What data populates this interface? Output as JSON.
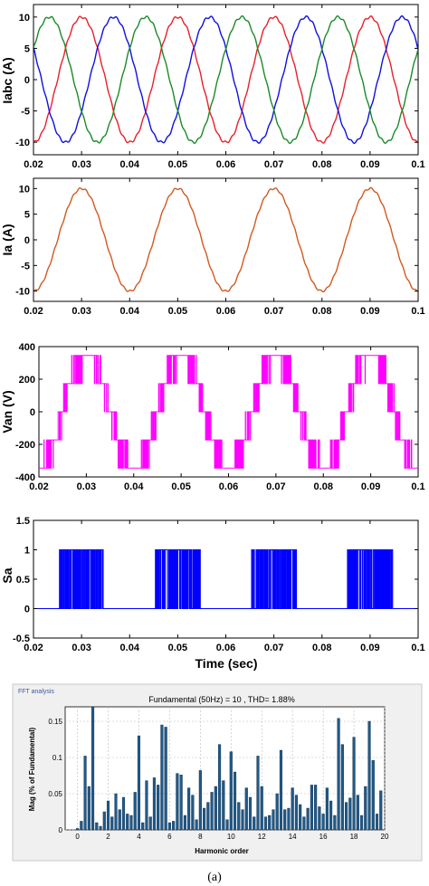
{
  "chart_data": [
    {
      "type": "line",
      "ylabel": "Iabc (A)",
      "xlim": [
        0.02,
        0.1
      ],
      "ylim": [
        -12,
        12
      ],
      "xticks": [
        "0.02",
        "0.03",
        "0.04",
        "0.05",
        "0.06",
        "0.07",
        "0.08",
        "0.09",
        "0.1"
      ],
      "yticks": [
        "10",
        "5",
        "0",
        "-5",
        "-10"
      ],
      "frequency_hz": 50,
      "amplitude": 10,
      "series": [
        {
          "color": "#e8202a",
          "phase_deg": 0
        },
        {
          "color": "#1010e0",
          "phase_deg": -120
        },
        {
          "color": "#1a8a2a",
          "phase_deg": 120
        }
      ]
    },
    {
      "type": "line",
      "ylabel": "Ia (A)",
      "xlim": [
        0.02,
        0.1
      ],
      "ylim": [
        -12,
        12
      ],
      "xticks": [
        "0.02",
        "0.03",
        "0.04",
        "0.05",
        "0.06",
        "0.07",
        "0.08",
        "0.09",
        "0.1"
      ],
      "yticks": [
        "10",
        "5",
        "0",
        "-5",
        "-10"
      ],
      "frequency_hz": 50,
      "amplitude": 10,
      "series": [
        {
          "color": "#d2591e",
          "phase_deg": 0
        }
      ]
    },
    {
      "type": "line",
      "ylabel": "Van (V)",
      "xlim": [
        0.02,
        0.1
      ],
      "ylim": [
        -400,
        400
      ],
      "xticks": [
        "0.02",
        "0.03",
        "0.04",
        "0.05",
        "0.06",
        "0.07",
        "0.08",
        "0.09",
        "0.1"
      ],
      "yticks": [
        "400",
        "200",
        "0",
        "-200",
        "-400"
      ],
      "levels": [
        -346,
        -173,
        0,
        173,
        346
      ],
      "frequency_hz": 50,
      "series": [
        {
          "color": "#ff00ff"
        }
      ]
    },
    {
      "type": "line",
      "ylabel": "Sa",
      "xlabel": "Time (sec)",
      "xlim": [
        0.02,
        0.1
      ],
      "ylim": [
        -0.5,
        1.5
      ],
      "xticks": [
        "0.02",
        "0.03",
        "0.04",
        "0.05",
        "0.06",
        "0.07",
        "0.08",
        "0.09",
        "0.1"
      ],
      "yticks": [
        "1.5",
        "1",
        "0.5",
        "0",
        "-0.5"
      ],
      "frequency_hz": 50,
      "series": [
        {
          "color": "#0000ff"
        }
      ]
    },
    {
      "type": "bar",
      "window_label": "FFT analysis",
      "title": "Fundamental (50Hz) = 10 , THD= 1.88%",
      "xlabel": "Harmonic order",
      "ylabel": "Mag (% of Fundamental)",
      "xlim": [
        -0.8,
        20
      ],
      "ylim": [
        0,
        0.17
      ],
      "xticks": [
        "0",
        "2",
        "4",
        "6",
        "8",
        "10",
        "12",
        "14",
        "16",
        "18",
        "20"
      ],
      "yticks": [
        "0",
        "0.05",
        "0.1",
        "0.15"
      ],
      "bar_color": "#1f5a8a",
      "x": [
        0,
        0.5,
        1,
        1.5,
        2,
        2.5,
        3,
        3.5,
        4,
        4.5,
        5,
        5.5,
        6,
        6.5,
        7,
        7.5,
        8,
        8.5,
        9,
        9.5,
        10,
        10.5,
        11,
        11.5,
        12,
        12.5,
        13,
        13.5,
        14,
        14.5,
        15,
        15.5,
        16,
        16.5,
        17,
        17.5,
        18,
        18.5,
        19,
        19.5,
        0.25,
        0.75,
        1.25,
        1.75,
        2.25,
        2.75,
        3.25,
        3.75,
        4.25,
        4.75,
        5.25,
        5.75,
        6.25,
        6.75,
        7.25,
        7.75,
        8.25,
        8.75,
        9.25,
        9.75,
        10.25,
        10.75,
        11.25,
        11.75,
        12.25,
        12.75,
        13.25,
        13.75,
        14.25,
        14.75,
        15.25,
        15.75,
        16.25,
        16.75,
        17.25,
        17.75,
        18.25,
        18.75,
        19.25,
        19.75
      ],
      "values": [
        0.002,
        0.102,
        0.17,
        0.005,
        0.04,
        0.05,
        0.045,
        0.02,
        0.13,
        0.068,
        0.072,
        0.145,
        0.01,
        0.078,
        0.02,
        0.048,
        0.082,
        0.038,
        0.06,
        0.068,
        0.108,
        0.038,
        0.058,
        0.018,
        0.06,
        0.02,
        0.05,
        0.028,
        0.058,
        0.035,
        0.03,
        0.062,
        0.022,
        0.04,
        0.154,
        0.038,
        0.128,
        0.02,
        0.15,
        0.022,
        0.012,
        0.06,
        0.01,
        0.025,
        0.018,
        0.028,
        0.022,
        0.052,
        0.01,
        0.018,
        0.062,
        0.142,
        0.012,
        0.076,
        0.058,
        0.014,
        0.03,
        0.052,
        0.118,
        0.014,
        0.08,
        0.028,
        0.045,
        0.102,
        0.018,
        0.028,
        0.11,
        0.03,
        0.048,
        0.018,
        0.062,
        0.032,
        0.058,
        0.02,
        0.118,
        0.044,
        0.048,
        0.06,
        0.096,
        0.054
      ]
    }
  ],
  "caption": "(a)"
}
